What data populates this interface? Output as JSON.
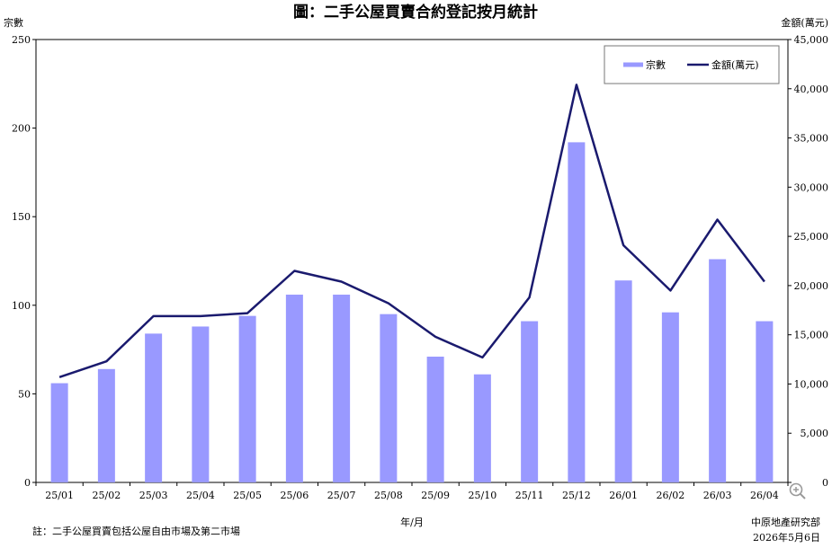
{
  "chart_data": {
    "type": "bar",
    "title": "圖：二手公屋買賣合約登記按月統計",
    "xlabel": "年/月",
    "ylabel": "宗數",
    "y2label": "金額(萬元)",
    "categories": [
      "25/01",
      "25/02",
      "25/03",
      "25/04",
      "25/05",
      "25/06",
      "25/07",
      "25/08",
      "25/09",
      "25/10",
      "25/11",
      "25/12",
      "26/01",
      "26/02",
      "26/03",
      "26/04"
    ],
    "ylim": [
      0,
      250
    ],
    "yticks": [
      "0",
      "50",
      "100",
      "150",
      "200",
      "250"
    ],
    "y2lim": [
      0,
      45000
    ],
    "y2ticks": [
      "0",
      "5,000",
      "10,000",
      "15,000",
      "20,000",
      "25,000",
      "30,000",
      "35,000",
      "40,000",
      "45,000"
    ],
    "series": [
      {
        "name": "宗數",
        "type": "bar",
        "axis": "left",
        "color": "#9999ff",
        "values": [
          56,
          64,
          84,
          88,
          94,
          106,
          106,
          95,
          71,
          61,
          91,
          192,
          114,
          96,
          126,
          91
        ]
      },
      {
        "name": "金額(萬元)",
        "type": "line",
        "axis": "right",
        "color": "#1a1a6e",
        "values": [
          10700,
          12300,
          16900,
          16900,
          17200,
          21500,
          20400,
          18200,
          14800,
          12700,
          18800,
          40400,
          24100,
          19500,
          26700,
          20400
        ]
      }
    ],
    "legend_position": "top-right",
    "grid": false
  },
  "footer": {
    "note": "註：二手公屋買賣包括公屋自由市場及第二市場",
    "source": "中原地產研究部",
    "date": "2026年5月6日"
  },
  "icons": {
    "zoom": "zoom-in-icon"
  }
}
